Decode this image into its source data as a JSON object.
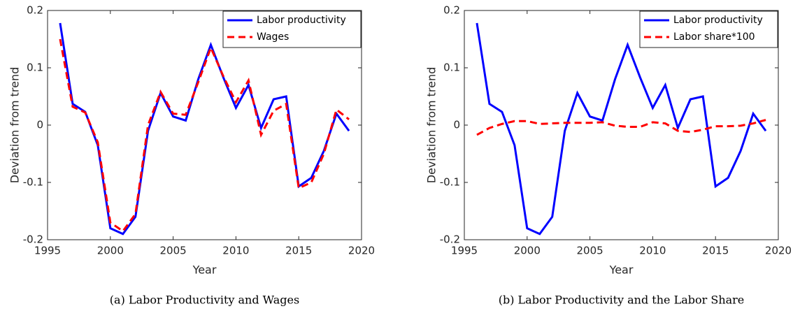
{
  "chart_data": [
    {
      "type": "line",
      "caption": "(a) Labor Productivity and Wages",
      "xlabel": "Year",
      "ylabel": "Deviation from trend",
      "x": [
        1996,
        1997,
        1998,
        1999,
        2000,
        2001,
        2002,
        2003,
        2004,
        2005,
        2006,
        2007,
        2008,
        2009,
        2010,
        2011,
        2012,
        2013,
        2014,
        2015,
        2016,
        2017,
        2018,
        2019
      ],
      "series": [
        {
          "name": "Labor productivity",
          "color": "#0000ff",
          "dash": "solid",
          "values": [
            0.178,
            0.037,
            0.023,
            -0.035,
            -0.18,
            -0.19,
            -0.16,
            -0.01,
            0.056,
            0.015,
            0.008,
            0.08,
            0.14,
            0.083,
            0.03,
            0.07,
            -0.005,
            0.045,
            0.05,
            -0.107,
            -0.092,
            -0.045,
            0.02,
            -0.01
          ]
        },
        {
          "name": "Wages",
          "color": "#ff0000",
          "dash": "dashed",
          "values": [
            0.15,
            0.032,
            0.022,
            -0.03,
            -0.17,
            -0.185,
            -0.155,
            0.0,
            0.058,
            0.02,
            0.018,
            0.075,
            0.135,
            0.085,
            0.04,
            0.078,
            -0.017,
            0.025,
            0.037,
            -0.11,
            -0.1,
            -0.05,
            0.027,
            0.01
          ]
        }
      ],
      "xlim": [
        1995,
        2020
      ],
      "xticks": [
        1995,
        2000,
        2005,
        2010,
        2015,
        2020
      ],
      "ylim": [
        -0.2,
        0.2
      ],
      "yticks": [
        -0.2,
        -0.1,
        0,
        0.1,
        0.2
      ],
      "legend": "upper right"
    },
    {
      "type": "line",
      "caption": "(b) Labor Productivity and the Labor Share",
      "xlabel": "Year",
      "ylabel": "Deviation from trend",
      "x": [
        1996,
        1997,
        1998,
        1999,
        2000,
        2001,
        2002,
        2003,
        2004,
        2005,
        2006,
        2007,
        2008,
        2009,
        2010,
        2011,
        2012,
        2013,
        2014,
        2015,
        2016,
        2017,
        2018,
        2019
      ],
      "series": [
        {
          "name": "Labor productivity",
          "color": "#0000ff",
          "dash": "solid",
          "values": [
            0.178,
            0.037,
            0.023,
            -0.035,
            -0.18,
            -0.19,
            -0.16,
            -0.01,
            0.056,
            0.015,
            0.008,
            0.08,
            0.14,
            0.083,
            0.03,
            0.07,
            -0.005,
            0.045,
            0.05,
            -0.107,
            -0.092,
            -0.045,
            0.02,
            -0.01
          ]
        },
        {
          "name": "Labor share*100",
          "color": "#ff0000",
          "dash": "dashed",
          "values": [
            -0.017,
            -0.005,
            0.002,
            0.007,
            0.007,
            0.002,
            0.003,
            0.004,
            0.004,
            0.004,
            0.005,
            -0.001,
            -0.003,
            -0.003,
            0.005,
            0.003,
            -0.01,
            -0.012,
            -0.008,
            -0.002,
            -0.002,
            -0.001,
            0.003,
            0.009
          ]
        }
      ],
      "xlim": [
        1995,
        2020
      ],
      "xticks": [
        1995,
        2000,
        2005,
        2010,
        2015,
        2020
      ],
      "ylim": [
        -0.2,
        0.2
      ],
      "yticks": [
        -0.2,
        -0.1,
        0,
        0.1,
        0.2
      ],
      "legend": "upper right"
    }
  ]
}
